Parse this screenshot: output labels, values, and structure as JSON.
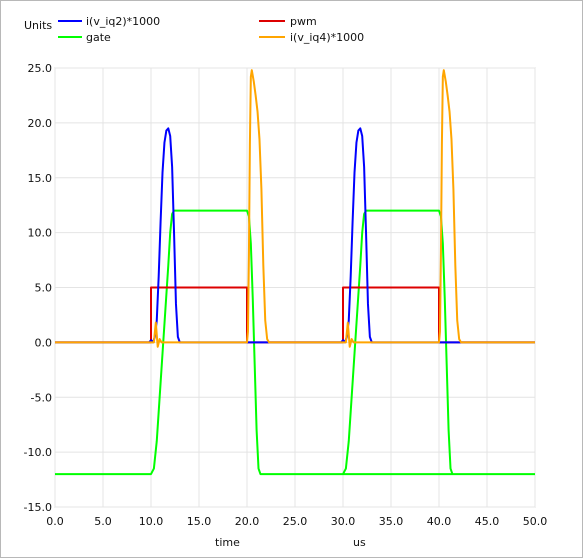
{
  "chart_data": {
    "type": "line",
    "ylabel": "Units",
    "xlabel": "time",
    "xunit": "us",
    "xlim": [
      0,
      50
    ],
    "ylim": [
      -15,
      25
    ],
    "xticks": [
      "0.0",
      "5.0",
      "10.0",
      "15.0",
      "20.0",
      "25.0",
      "30.0",
      "35.0",
      "40.0",
      "45.0",
      "50.0"
    ],
    "yticks": [
      "25.0",
      "20.0",
      "15.0",
      "10.0",
      "5.0",
      "0.0",
      "-5.0",
      "-10.0",
      "-15.0"
    ],
    "grid": true,
    "legend_position": "top",
    "series": [
      {
        "name": "i(v_iq2)*1000",
        "color": "#0000ff",
        "x": [
          0,
          9.8,
          10.0,
          10.2,
          10.4,
          10.6,
          10.8,
          11.0,
          11.2,
          11.4,
          11.6,
          11.8,
          12.0,
          12.2,
          12.4,
          12.6,
          12.8,
          13.0,
          13.5,
          20,
          29.8,
          30.0,
          30.2,
          30.4,
          30.6,
          30.8,
          31.0,
          31.2,
          31.4,
          31.6,
          31.8,
          32.0,
          32.2,
          32.4,
          32.6,
          32.8,
          33.0,
          33.5,
          50
        ],
        "y": [
          0,
          0,
          0.2,
          0.0,
          0.5,
          2.0,
          6.0,
          11.0,
          15.5,
          18.2,
          19.3,
          19.5,
          18.8,
          16.0,
          10.0,
          3.5,
          0.5,
          0,
          0,
          0,
          0,
          0.2,
          0.0,
          0.5,
          2.0,
          6.0,
          11.0,
          15.5,
          18.2,
          19.3,
          19.5,
          18.8,
          16.0,
          10.0,
          3.5,
          0.5,
          0,
          0,
          0
        ]
      },
      {
        "name": "gate",
        "color": "#00ff00",
        "x": [
          0,
          10.0,
          10.3,
          10.6,
          10.9,
          11.2,
          11.5,
          11.8,
          12.0,
          12.2,
          12.4,
          12.6,
          20.0,
          20.2,
          20.4,
          20.6,
          20.8,
          21.0,
          21.2,
          21.4,
          21.6,
          50.0,
          30.0,
          30.3,
          30.6,
          30.9,
          31.2,
          31.5,
          31.8,
          32.0,
          32.2,
          32.4,
          32.6,
          40.0,
          40.2,
          40.4,
          40.6,
          40.8,
          41.0,
          41.2,
          41.4,
          41.6,
          50.0
        ],
        "y": [
          -12,
          -12,
          -11.5,
          -9,
          -5,
          -1,
          3,
          7,
          10,
          11.7,
          12,
          12,
          12,
          11.5,
          9,
          4,
          -2,
          -8,
          -11.5,
          -12,
          -12,
          -12,
          -12,
          -11.5,
          -9,
          -5,
          -1,
          3,
          7,
          10,
          11.7,
          12,
          12,
          12,
          11.5,
          9,
          4,
          -2,
          -8,
          -11.5,
          -12,
          -12,
          -12
        ]
      },
      {
        "name": "pwm",
        "color": "#dd0000",
        "x": [
          0,
          10.0,
          10.0,
          20.0,
          20.0,
          30.0,
          30.0,
          40.0,
          40.0,
          50.0
        ],
        "y": [
          0,
          0,
          5,
          5,
          0,
          0,
          5,
          5,
          0,
          0
        ]
      },
      {
        "name": "i(v_iq4)*1000",
        "color": "#ffa500",
        "x": [
          0,
          10.3,
          10.5,
          10.7,
          10.9,
          11.1,
          20.0,
          20.1,
          20.2,
          20.3,
          20.4,
          20.5,
          20.7,
          20.9,
          21.1,
          21.3,
          21.5,
          21.7,
          21.9,
          22.1,
          22.3,
          30.3,
          30.5,
          30.7,
          30.9,
          31.1,
          40.0,
          40.1,
          40.2,
          40.3,
          40.4,
          40.5,
          40.7,
          40.9,
          41.1,
          41.3,
          41.5,
          41.7,
          41.9,
          42.1,
          42.3,
          50
        ],
        "y": [
          0,
          0,
          1.8,
          -0.4,
          0.3,
          0,
          0,
          1.0,
          8.0,
          18.0,
          24.2,
          24.8,
          23.8,
          22.5,
          21.0,
          18.5,
          14.0,
          7.0,
          2.0,
          0.3,
          0,
          0,
          1.8,
          -0.4,
          0.3,
          0,
          0,
          1.0,
          8.0,
          18.0,
          24.2,
          24.8,
          23.8,
          22.5,
          21.0,
          18.5,
          14.0,
          7.0,
          2.0,
          0.3,
          0,
          0
        ]
      }
    ]
  }
}
